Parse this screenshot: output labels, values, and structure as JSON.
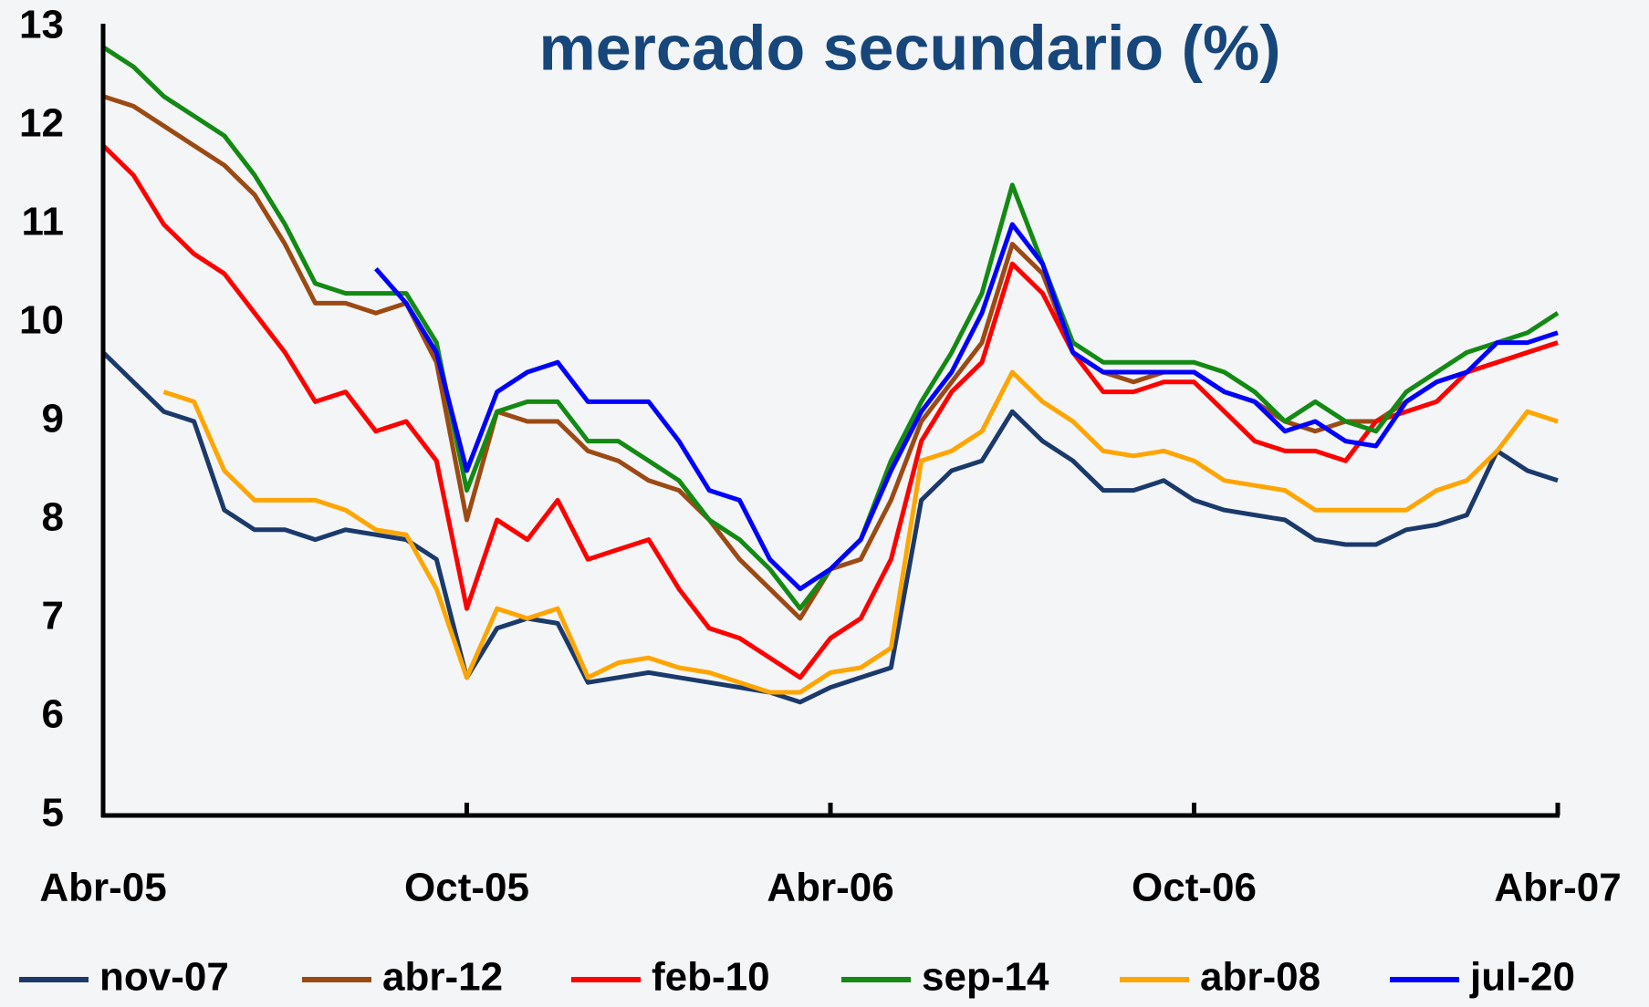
{
  "chart_data": {
    "type": "line",
    "title": "mercado secundario (%)",
    "categories": [
      "Abr-05",
      null,
      null,
      null,
      null,
      null,
      null,
      null,
      null,
      null,
      null,
      null,
      "Oct-05",
      null,
      null,
      null,
      null,
      null,
      null,
      null,
      null,
      null,
      null,
      null,
      "Abr-06",
      null,
      null,
      null,
      null,
      null,
      null,
      null,
      null,
      null,
      null,
      null,
      "Oct-06",
      null,
      null,
      null,
      null,
      null,
      null,
      null,
      null,
      null,
      null,
      null,
      "Abr-07"
    ],
    "ylim": [
      5,
      13
    ],
    "yticks": [
      5,
      6,
      7,
      8,
      9,
      10,
      11,
      12,
      13
    ],
    "series": [
      {
        "name": "nov-07",
        "color": "#1b3a6b",
        "values": [
          9.7,
          9.4,
          9.1,
          9.0,
          8.1,
          7.9,
          7.9,
          7.8,
          7.9,
          7.85,
          7.8,
          7.6,
          6.4,
          6.9,
          7.0,
          6.95,
          6.35,
          6.4,
          6.45,
          6.4,
          6.35,
          6.3,
          6.25,
          6.15,
          6.3,
          6.4,
          6.5,
          8.2,
          8.5,
          8.6,
          9.1,
          8.8,
          8.6,
          8.3,
          8.3,
          8.4,
          8.2,
          8.1,
          8.05,
          8.0,
          7.8,
          7.75,
          7.75,
          7.9,
          7.95,
          8.05,
          8.7,
          8.5,
          8.4
        ]
      },
      {
        "name": "abr-12",
        "color": "#9c4a14",
        "values": [
          12.3,
          12.2,
          12.0,
          11.8,
          11.6,
          11.3,
          10.8,
          10.2,
          10.2,
          10.1,
          10.2,
          9.6,
          8.0,
          9.1,
          9.0,
          9.0,
          8.7,
          8.6,
          8.4,
          8.3,
          8.0,
          7.6,
          7.3,
          7.0,
          7.5,
          7.6,
          8.2,
          9.0,
          9.4,
          9.8,
          10.8,
          10.5,
          9.7,
          9.5,
          9.4,
          9.5,
          9.5,
          9.3,
          9.2,
          9.0,
          8.9,
          9.0,
          9.0,
          9.2,
          9.4,
          9.5,
          9.6,
          9.7,
          9.8
        ]
      },
      {
        "name": "feb-10",
        "color": "#ff0000",
        "values": [
          11.8,
          11.5,
          11.0,
          10.7,
          10.5,
          10.1,
          9.7,
          9.2,
          9.3,
          8.9,
          9.0,
          8.6,
          7.1,
          8.0,
          7.8,
          8.2,
          7.6,
          7.7,
          7.8,
          7.3,
          6.9,
          6.8,
          6.6,
          6.4,
          6.8,
          7.0,
          7.6,
          8.8,
          9.3,
          9.6,
          10.6,
          10.3,
          9.7,
          9.3,
          9.3,
          9.4,
          9.4,
          9.1,
          8.8,
          8.7,
          8.7,
          8.6,
          9.0,
          9.1,
          9.2,
          9.5,
          9.6,
          9.7,
          9.8
        ]
      },
      {
        "name": "sep-14",
        "color": "#138a13",
        "values": [
          12.8,
          12.6,
          12.3,
          12.1,
          11.9,
          11.5,
          11.0,
          10.4,
          10.3,
          10.3,
          10.3,
          9.8,
          8.3,
          9.1,
          9.2,
          9.2,
          8.8,
          8.8,
          8.6,
          8.4,
          8.0,
          7.8,
          7.5,
          7.1,
          7.5,
          7.8,
          8.6,
          9.2,
          9.7,
          10.3,
          11.4,
          10.6,
          9.8,
          9.6,
          9.6,
          9.6,
          9.6,
          9.5,
          9.3,
          9.0,
          9.2,
          9.0,
          8.9,
          9.3,
          9.5,
          9.7,
          9.8,
          9.9,
          10.1
        ]
      },
      {
        "name": "abr-08",
        "color": "#ffa500",
        "values": [
          null,
          null,
          9.3,
          9.2,
          8.5,
          8.2,
          8.2,
          8.2,
          8.1,
          7.9,
          7.85,
          7.3,
          6.4,
          7.1,
          7.0,
          7.1,
          6.4,
          6.55,
          6.6,
          6.5,
          6.45,
          6.35,
          6.25,
          6.25,
          6.45,
          6.5,
          6.7,
          8.6,
          8.7,
          8.9,
          9.5,
          9.2,
          9.0,
          8.7,
          8.65,
          8.7,
          8.6,
          8.4,
          8.35,
          8.3,
          8.1,
          8.1,
          8.1,
          8.1,
          8.3,
          8.4,
          8.7,
          9.1,
          9.0
        ]
      },
      {
        "name": "jul-20",
        "color": "#0000ff",
        "values": [
          null,
          null,
          null,
          null,
          null,
          null,
          null,
          null,
          null,
          10.55,
          10.2,
          9.7,
          8.5,
          9.3,
          9.5,
          9.6,
          9.2,
          9.2,
          9.2,
          8.8,
          8.3,
          8.2,
          7.6,
          7.3,
          7.5,
          7.8,
          8.5,
          9.1,
          9.5,
          10.1,
          11.0,
          10.6,
          9.7,
          9.5,
          9.5,
          9.5,
          9.5,
          9.3,
          9.2,
          8.9,
          9.0,
          8.8,
          8.75,
          9.2,
          9.4,
          9.5,
          9.8,
          9.8,
          9.9
        ]
      }
    ]
  }
}
